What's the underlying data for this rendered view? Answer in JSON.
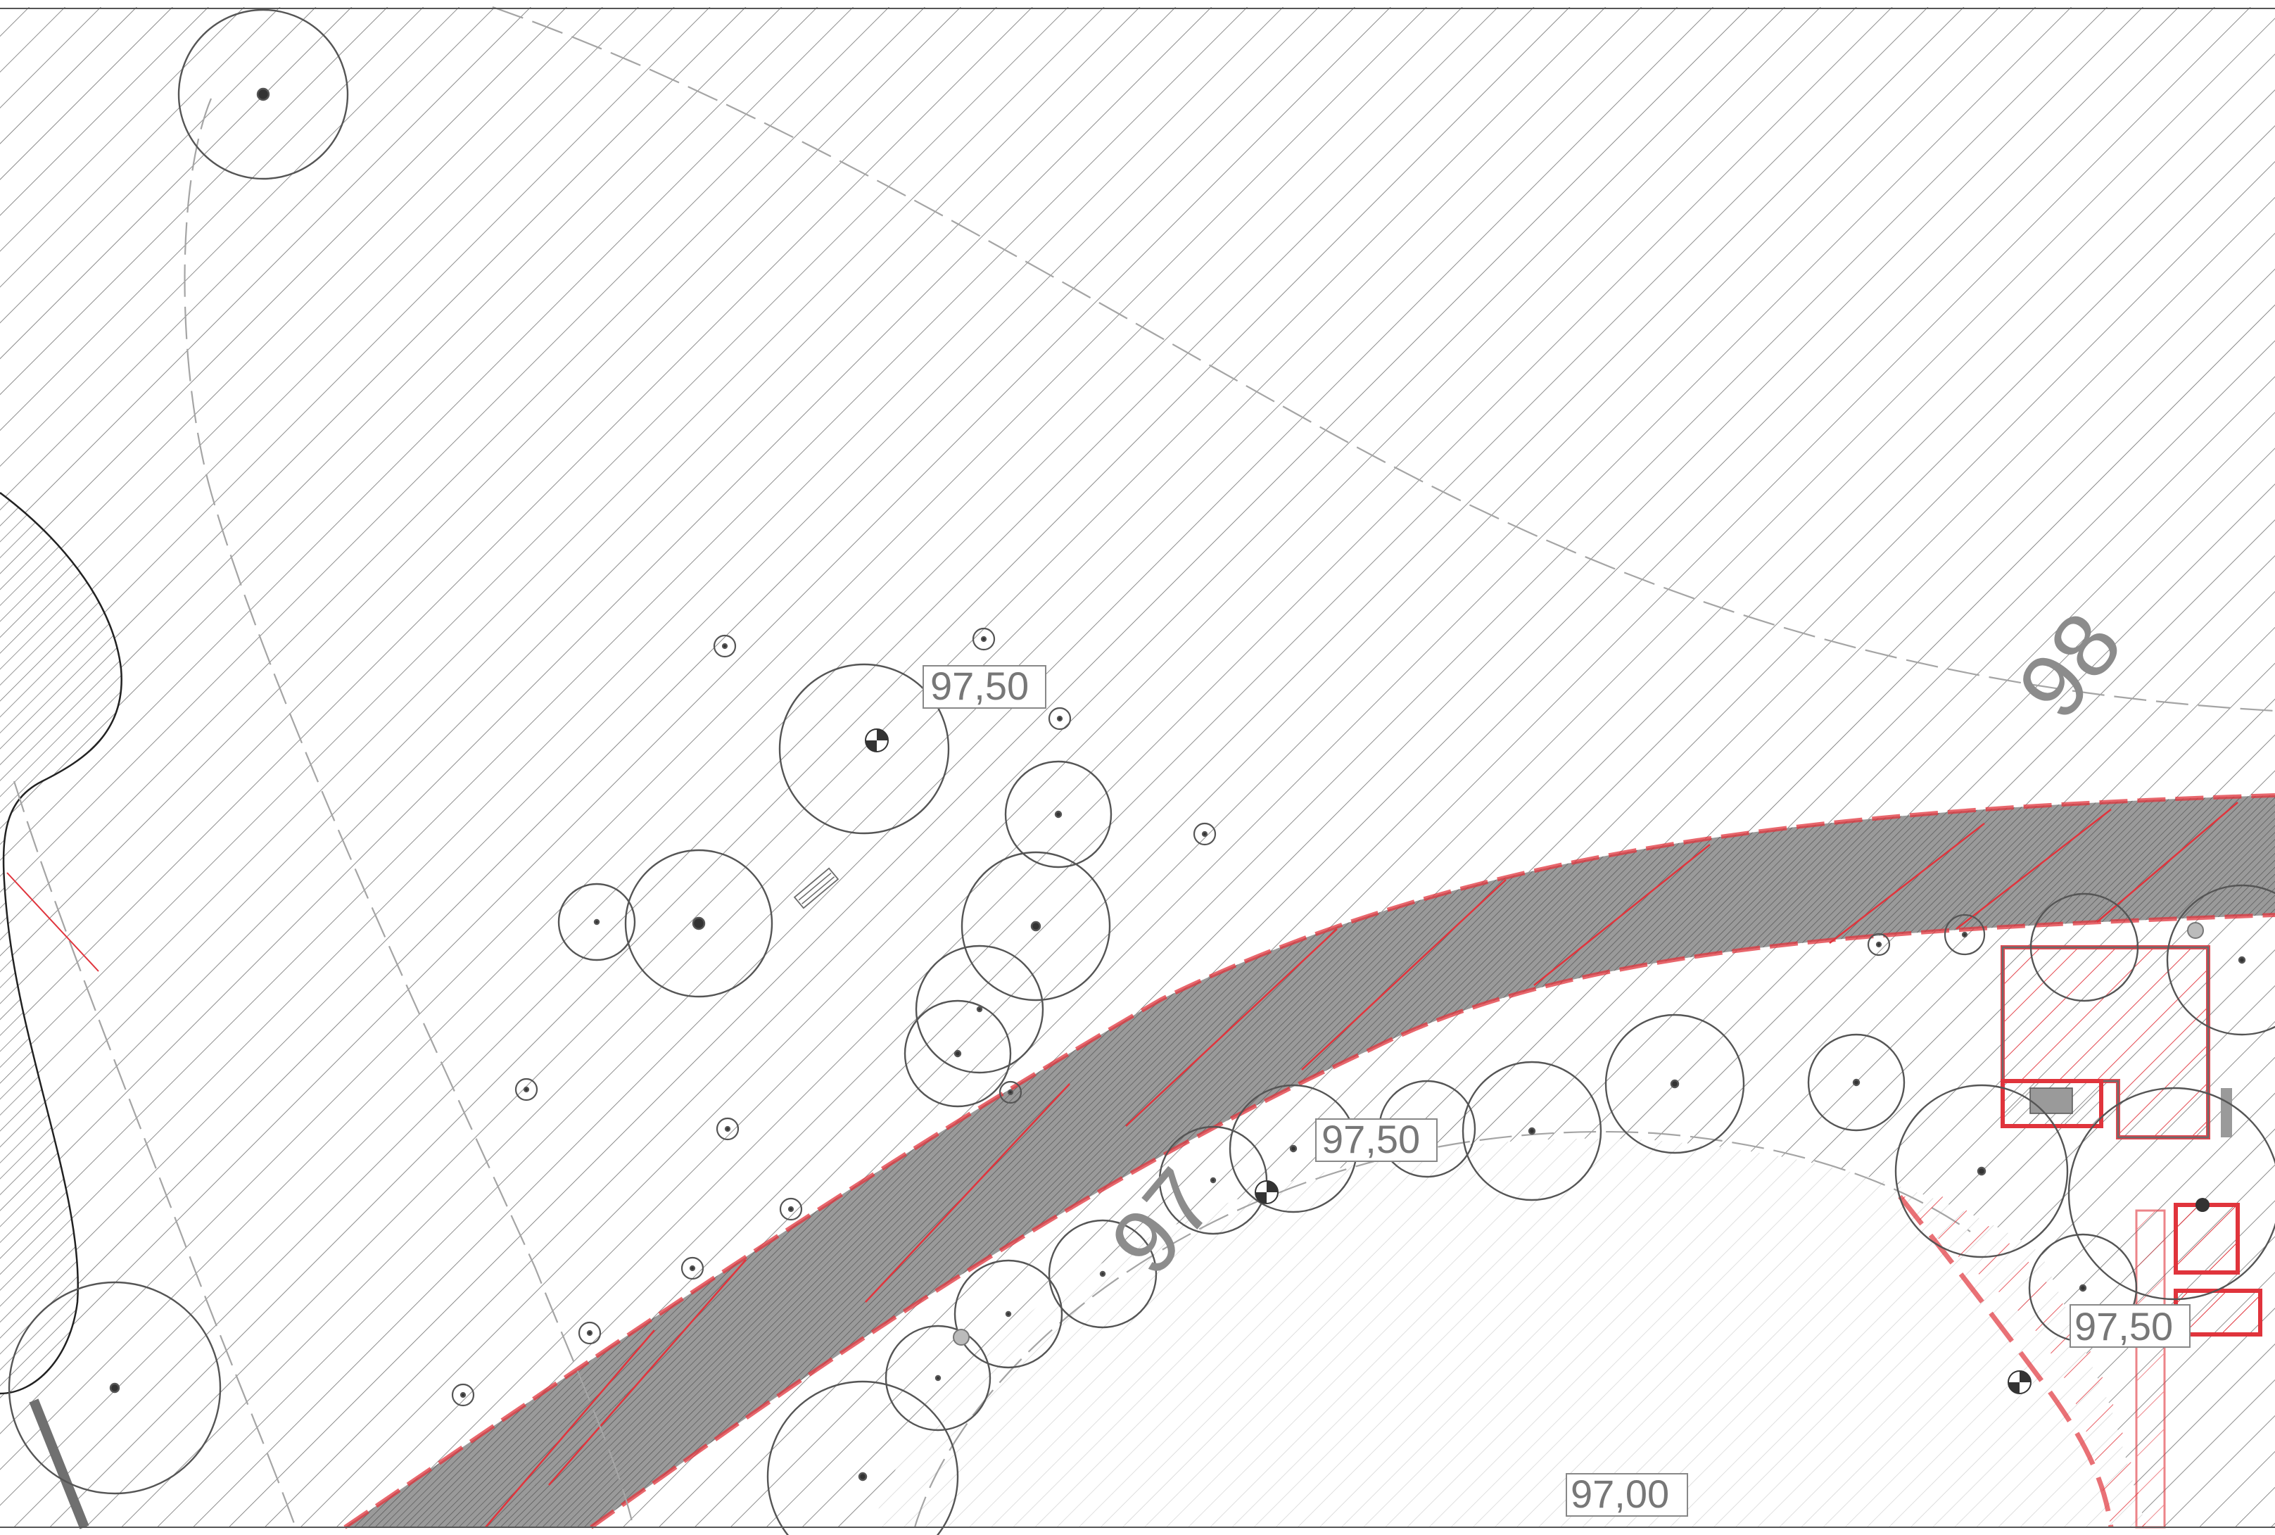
{
  "plan": {
    "colors": {
      "hatch": "#6a6a6a",
      "paved_hatch": "#cfcfcf",
      "contour": "#a8a8a8",
      "tree": "#555555",
      "demolition": "#e0343c",
      "road_fill": "#8f8f8f",
      "label_text": "#777777"
    },
    "contour_labels": [
      {
        "id": "98",
        "text": "98"
      },
      {
        "id": "97",
        "text": "97"
      }
    ],
    "elevation_tags": [
      {
        "id": "upper",
        "text": "97,50"
      },
      {
        "id": "road",
        "text": "97,50"
      },
      {
        "id": "right",
        "text": "97,50"
      },
      {
        "id": "bottom",
        "text": "97,00"
      }
    ],
    "symbols": {
      "tree": "tree-canopy-icon",
      "shrub": "shrub-icon",
      "survey_point": "survey-benchmark-icon"
    }
  }
}
